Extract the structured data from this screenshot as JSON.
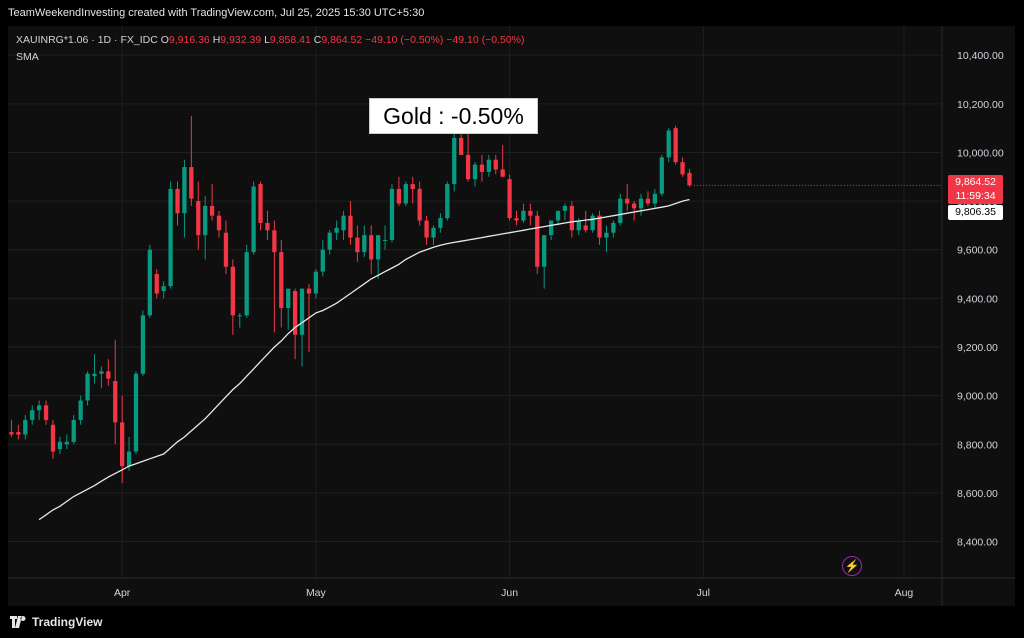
{
  "header": {
    "caption": "TeamWeekendInvesting created with TradingView.com, Jul 25, 2025 15:30 UTC+5:30"
  },
  "legend": {
    "symbol": "XAUINRG*1.06 · 1D · FX_IDC",
    "o_label": "O",
    "o_value": "9,916.36",
    "h_label": "H",
    "h_value": "9,932.39",
    "l_label": "L",
    "l_value": "9,858.41",
    "c_label": "C",
    "c_value": "9,864.52",
    "change": "−49.10 (−0.50%)",
    "change2": "−49.10 (−0.50%)",
    "indicator": "SMA"
  },
  "annotation": "Gold : -0.50%",
  "price_tags": {
    "last_price": "9,864.52",
    "countdown": "11:59:34",
    "sma_value": "9,806.35"
  },
  "footer": {
    "brand": "TradingView"
  },
  "colors": {
    "up": "#089981",
    "down": "#f23645",
    "sma": "#e8e8e8",
    "background": "#0f0f0f",
    "grid": "#1f1f1f"
  },
  "icons": {
    "bolt": "lightning-bolt-icon",
    "logo": "tradingview-logo-icon"
  },
  "chart_data": {
    "type": "candlestick",
    "title": "Gold : -0.50%",
    "y_ticks": [
      "10,400.00",
      "10,200.00",
      "10,000.00",
      "9,800.00",
      "9,600.00",
      "9,400.00",
      "9,200.00",
      "9,000.00",
      "8,800.00",
      "8,600.00",
      "8,400.00"
    ],
    "y_tick_values": [
      10400,
      10200,
      10000,
      9800,
      9600,
      9400,
      9200,
      9000,
      8800,
      8600,
      8400
    ],
    "ylim": [
      8250,
      10520
    ],
    "x_labels": [
      {
        "label": "Apr",
        "index": 16
      },
      {
        "label": "May",
        "index": 44
      },
      {
        "label": "Jun",
        "index": 72
      },
      {
        "label": "Jul",
        "index": 100
      },
      {
        "label": "Aug",
        "index": 129
      }
    ],
    "x_range": [
      -0.5,
      134.5
    ],
    "candles": [
      {
        "o": 8850,
        "h": 8900,
        "l": 8830,
        "c": 8840
      },
      {
        "o": 8850,
        "h": 8880,
        "l": 8820,
        "c": 8840
      },
      {
        "o": 8840,
        "h": 8920,
        "l": 8820,
        "c": 8900
      },
      {
        "o": 8900,
        "h": 8960,
        "l": 8880,
        "c": 8940
      },
      {
        "o": 8940,
        "h": 8980,
        "l": 8900,
        "c": 8960
      },
      {
        "o": 8960,
        "h": 8980,
        "l": 8880,
        "c": 8900
      },
      {
        "o": 8880,
        "h": 8900,
        "l": 8740,
        "c": 8770
      },
      {
        "o": 8780,
        "h": 8830,
        "l": 8760,
        "c": 8810
      },
      {
        "o": 8800,
        "h": 8840,
        "l": 8780,
        "c": 8810
      },
      {
        "o": 8810,
        "h": 8920,
        "l": 8800,
        "c": 8900
      },
      {
        "o": 8900,
        "h": 9000,
        "l": 8880,
        "c": 8980
      },
      {
        "o": 8980,
        "h": 9100,
        "l": 8960,
        "c": 9090
      },
      {
        "o": 9080,
        "h": 9170,
        "l": 9050,
        "c": 9090
      },
      {
        "o": 9090,
        "h": 9120,
        "l": 9030,
        "c": 9100
      },
      {
        "o": 9100,
        "h": 9150,
        "l": 9040,
        "c": 9070
      },
      {
        "o": 9060,
        "h": 9230,
        "l": 8800,
        "c": 8890
      },
      {
        "o": 8890,
        "h": 9000,
        "l": 8640,
        "c": 8710
      },
      {
        "o": 8710,
        "h": 8830,
        "l": 8690,
        "c": 8770
      },
      {
        "o": 8770,
        "h": 9100,
        "l": 8760,
        "c": 9090
      },
      {
        "o": 9090,
        "h": 9350,
        "l": 9080,
        "c": 9330
      },
      {
        "o": 9330,
        "h": 9620,
        "l": 9320,
        "c": 9600
      },
      {
        "o": 9500,
        "h": 9520,
        "l": 9400,
        "c": 9420
      },
      {
        "o": 9430,
        "h": 9470,
        "l": 9400,
        "c": 9450
      },
      {
        "o": 9450,
        "h": 9880,
        "l": 9440,
        "c": 9850
      },
      {
        "o": 9850,
        "h": 9880,
        "l": 9700,
        "c": 9750
      },
      {
        "o": 9750,
        "h": 9970,
        "l": 9650,
        "c": 9940
      },
      {
        "o": 9940,
        "h": 10150,
        "l": 9780,
        "c": 9810
      },
      {
        "o": 9800,
        "h": 9880,
        "l": 9600,
        "c": 9660
      },
      {
        "o": 9660,
        "h": 9820,
        "l": 9560,
        "c": 9780
      },
      {
        "o": 9780,
        "h": 9870,
        "l": 9720,
        "c": 9740
      },
      {
        "o": 9740,
        "h": 9760,
        "l": 9650,
        "c": 9680
      },
      {
        "o": 9670,
        "h": 9720,
        "l": 9500,
        "c": 9530
      },
      {
        "o": 9530,
        "h": 9560,
        "l": 9250,
        "c": 9330
      },
      {
        "o": 9330,
        "h": 9340,
        "l": 9280,
        "c": 9330
      },
      {
        "o": 9330,
        "h": 9620,
        "l": 9320,
        "c": 9590
      },
      {
        "o": 9590,
        "h": 9880,
        "l": 9580,
        "c": 9860
      },
      {
        "o": 9870,
        "h": 9880,
        "l": 9680,
        "c": 9710
      },
      {
        "o": 9710,
        "h": 9760,
        "l": 9640,
        "c": 9680
      },
      {
        "o": 9680,
        "h": 9720,
        "l": 9260,
        "c": 9590
      },
      {
        "o": 9590,
        "h": 9640,
        "l": 9280,
        "c": 9360
      },
      {
        "o": 9360,
        "h": 9420,
        "l": 9270,
        "c": 9440
      },
      {
        "o": 9430,
        "h": 9440,
        "l": 9150,
        "c": 9250
      },
      {
        "o": 9250,
        "h": 9440,
        "l": 9120,
        "c": 9440
      },
      {
        "o": 9440,
        "h": 9460,
        "l": 9180,
        "c": 9420
      },
      {
        "o": 9420,
        "h": 9520,
        "l": 9400,
        "c": 9510
      },
      {
        "o": 9510,
        "h": 9640,
        "l": 9490,
        "c": 9600
      },
      {
        "o": 9600,
        "h": 9680,
        "l": 9580,
        "c": 9670
      },
      {
        "o": 9670,
        "h": 9720,
        "l": 9640,
        "c": 9690
      },
      {
        "o": 9680,
        "h": 9760,
        "l": 9640,
        "c": 9740
      },
      {
        "o": 9740,
        "h": 9800,
        "l": 9620,
        "c": 9650
      },
      {
        "o": 9650,
        "h": 9700,
        "l": 9550,
        "c": 9590
      },
      {
        "o": 9590,
        "h": 9700,
        "l": 9570,
        "c": 9660
      },
      {
        "o": 9660,
        "h": 9700,
        "l": 9500,
        "c": 9560
      },
      {
        "o": 9560,
        "h": 9640,
        "l": 9480,
        "c": 9660
      },
      {
        "o": 9640,
        "h": 9700,
        "l": 9600,
        "c": 9640
      },
      {
        "o": 9640,
        "h": 9870,
        "l": 9630,
        "c": 9850
      },
      {
        "o": 9850,
        "h": 9900,
        "l": 9780,
        "c": 9790
      },
      {
        "o": 9790,
        "h": 9880,
        "l": 9780,
        "c": 9870
      },
      {
        "o": 9870,
        "h": 9900,
        "l": 9790,
        "c": 9850
      },
      {
        "o": 9850,
        "h": 9880,
        "l": 9700,
        "c": 9720
      },
      {
        "o": 9720,
        "h": 9740,
        "l": 9620,
        "c": 9650
      },
      {
        "o": 9650,
        "h": 9700,
        "l": 9620,
        "c": 9690
      },
      {
        "o": 9690,
        "h": 9750,
        "l": 9670,
        "c": 9730
      },
      {
        "o": 9730,
        "h": 9880,
        "l": 9720,
        "c": 9870
      },
      {
        "o": 9870,
        "h": 10100,
        "l": 9840,
        "c": 10060
      },
      {
        "o": 10060,
        "h": 10100,
        "l": 9990,
        "c": 9990
      },
      {
        "o": 9990,
        "h": 10130,
        "l": 9880,
        "c": 9890
      },
      {
        "o": 9890,
        "h": 9960,
        "l": 9860,
        "c": 9950
      },
      {
        "o": 9950,
        "h": 9990,
        "l": 9880,
        "c": 9920
      },
      {
        "o": 9920,
        "h": 9990,
        "l": 9900,
        "c": 9970
      },
      {
        "o": 9970,
        "h": 9990,
        "l": 9910,
        "c": 9930
      },
      {
        "o": 9930,
        "h": 10030,
        "l": 9900,
        "c": 9900
      },
      {
        "o": 9890,
        "h": 9910,
        "l": 9720,
        "c": 9730
      },
      {
        "o": 9730,
        "h": 9760,
        "l": 9700,
        "c": 9720
      },
      {
        "o": 9720,
        "h": 9790,
        "l": 9710,
        "c": 9760
      },
      {
        "o": 9760,
        "h": 9790,
        "l": 9700,
        "c": 9740
      },
      {
        "o": 9740,
        "h": 9760,
        "l": 9500,
        "c": 9530
      },
      {
        "o": 9530,
        "h": 9640,
        "l": 9440,
        "c": 9660
      },
      {
        "o": 9660,
        "h": 9720,
        "l": 9640,
        "c": 9720
      },
      {
        "o": 9720,
        "h": 9760,
        "l": 9700,
        "c": 9760
      },
      {
        "o": 9760,
        "h": 9790,
        "l": 9720,
        "c": 9780
      },
      {
        "o": 9780,
        "h": 9800,
        "l": 9650,
        "c": 9680
      },
      {
        "o": 9680,
        "h": 9730,
        "l": 9660,
        "c": 9720
      },
      {
        "o": 9700,
        "h": 9760,
        "l": 9670,
        "c": 9680
      },
      {
        "o": 9680,
        "h": 9750,
        "l": 9670,
        "c": 9740
      },
      {
        "o": 9740,
        "h": 9760,
        "l": 9620,
        "c": 9650
      },
      {
        "o": 9650,
        "h": 9700,
        "l": 9590,
        "c": 9670
      },
      {
        "o": 9670,
        "h": 9720,
        "l": 9650,
        "c": 9710
      },
      {
        "o": 9710,
        "h": 9830,
        "l": 9700,
        "c": 9810
      },
      {
        "o": 9810,
        "h": 9870,
        "l": 9760,
        "c": 9790
      },
      {
        "o": 9790,
        "h": 9800,
        "l": 9720,
        "c": 9770
      },
      {
        "o": 9770,
        "h": 9830,
        "l": 9740,
        "c": 9810
      },
      {
        "o": 9810,
        "h": 9840,
        "l": 9780,
        "c": 9790
      },
      {
        "o": 9790,
        "h": 9850,
        "l": 9770,
        "c": 9830
      },
      {
        "o": 9830,
        "h": 9990,
        "l": 9820,
        "c": 9980
      },
      {
        "o": 9980,
        "h": 10100,
        "l": 9960,
        "c": 10090
      },
      {
        "o": 10100,
        "h": 10110,
        "l": 9950,
        "c": 9960
      },
      {
        "o": 9960,
        "h": 9980,
        "l": 9900,
        "c": 9910
      },
      {
        "o": 9916.36,
        "h": 9932.39,
        "l": 9858.41,
        "c": 9864.52
      }
    ],
    "sma": [
      8490,
      8510,
      8530,
      8545,
      8565,
      8585,
      8600,
      8615,
      8630,
      8648,
      8665,
      8680,
      8695,
      8710,
      8720,
      8730,
      8740,
      8750,
      8760,
      8785,
      8810,
      8830,
      8855,
      8880,
      8905,
      8935,
      8965,
      8995,
      9025,
      9050,
      9080,
      9110,
      9140,
      9170,
      9200,
      9225,
      9255,
      9280,
      9300,
      9320,
      9340,
      9350,
      9365,
      9380,
      9400,
      9420,
      9440,
      9460,
      9480,
      9495,
      9510,
      9525,
      9540,
      9560,
      9575,
      9590,
      9600,
      9610,
      9618,
      9625,
      9630,
      9635,
      9640,
      9645,
      9650,
      9655,
      9660,
      9665,
      9670,
      9675,
      9680,
      9685,
      9690,
      9695,
      9700,
      9705,
      9710,
      9715,
      9718,
      9722,
      9725,
      9730,
      9735,
      9740,
      9745,
      9750,
      9755,
      9760,
      9765,
      9770,
      9775,
      9780,
      9790,
      9800,
      9806.35
    ],
    "last_price": 9864.52,
    "sma_last": 9806.35
  }
}
